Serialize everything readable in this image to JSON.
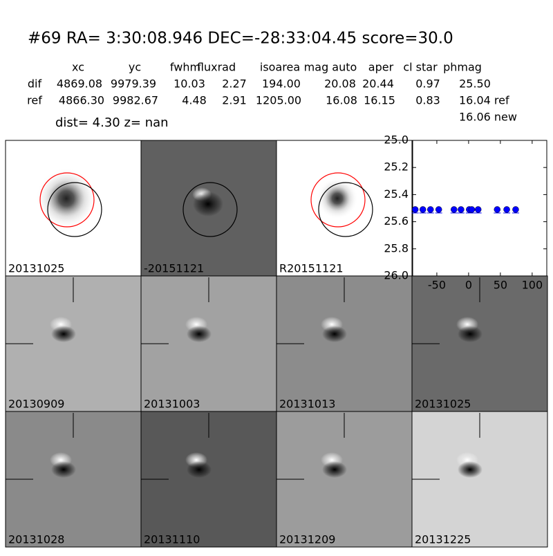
{
  "header": {
    "title": "#69   RA= 3:30:08.946 DEC=-28:33:04.45       score=30.0"
  },
  "table": {
    "columns": [
      "xc",
      "yc",
      "fwhm",
      "fluxrad",
      "isoarea",
      "mag auto",
      "aper",
      "cl star",
      "phmag"
    ],
    "rows": [
      [
        "dif",
        "4869.08",
        "9979.39",
        "10.03",
        "2.27",
        "194.00",
        "20.08",
        "20.44",
        "0.97",
        "25.50"
      ],
      [
        "ref",
        "4866.30",
        "9982.67",
        "4.48",
        "2.91",
        "1205.00",
        "16.08",
        "16.15",
        "0.83",
        "16.04 ref"
      ]
    ],
    "extra": "16.06 new"
  },
  "dist_line": "dist=  4.30       z=   nan",
  "panels": [
    {
      "label": "20131025"
    },
    {
      "label": "-20151121"
    },
    {
      "label": "R20151121"
    },
    {
      "label": "20130909"
    },
    {
      "label": "20131003"
    },
    {
      "label": "20131013"
    },
    {
      "label": "20131025",
      "label_color": "#ff0000"
    },
    {
      "label": "20131028"
    },
    {
      "label": "20131110"
    },
    {
      "label": "20131209"
    },
    {
      "label": "20131225"
    }
  ],
  "plot": {
    "type": "scatter",
    "color": "#0000ff",
    "x": [
      -84,
      -72,
      -60,
      -47,
      -23,
      -12,
      1,
      5,
      15,
      45,
      60,
      74
    ],
    "y": [
      25.51,
      25.51,
      25.51,
      25.51,
      25.51,
      25.51,
      25.51,
      25.51,
      25.51,
      25.51,
      25.51,
      25.51
    ],
    "xlim": [
      -88,
      123
    ],
    "ylim": [
      26.0,
      25.0
    ],
    "xticks": [
      -50,
      0,
      50,
      100
    ],
    "yticks": [
      {
        "value": 25.0,
        "label": "25.0"
      },
      25.2,
      25.4,
      25.6,
      25.8,
      {
        "value": 26.0,
        "label": "26.0"
      }
    ]
  }
}
